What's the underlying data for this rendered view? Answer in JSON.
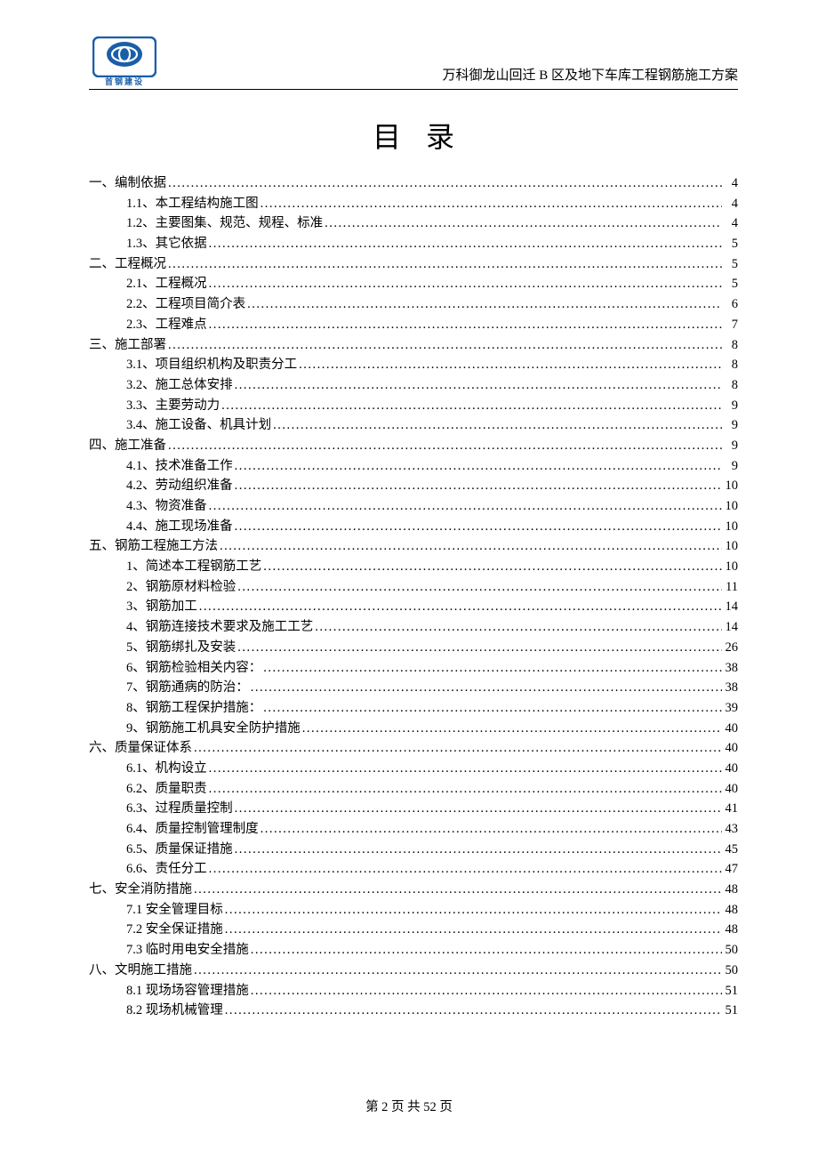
{
  "header": {
    "logo_caption": "首钢建设",
    "doc_title": "万科御龙山回迁 B 区及地下车库工程钢筋施工方案"
  },
  "toc_heading": "目录",
  "footer": {
    "text": "第 2 页 共 52 页"
  },
  "colors": {
    "logo_blue": "#1a5ea8",
    "text": "#000000",
    "background": "#ffffff"
  },
  "toc": [
    {
      "level": 1,
      "label": "一、编制依据",
      "page": "4"
    },
    {
      "level": 2,
      "label": "1.1、本工程结构施工图",
      "page": "4"
    },
    {
      "level": 2,
      "label": "1.2、主要图集、规范、规程、标准",
      "page": "4"
    },
    {
      "level": 2,
      "label": "1.3、其它依据",
      "page": "5"
    },
    {
      "level": 1,
      "label": "二、工程概况",
      "page": "5"
    },
    {
      "level": 2,
      "label": "2.1、工程概况",
      "page": "5"
    },
    {
      "level": 2,
      "label": "2.2、工程项目简介表",
      "page": "6"
    },
    {
      "level": 2,
      "label": "2.3、工程难点",
      "page": "7"
    },
    {
      "level": 1,
      "label": "三、施工部署",
      "page": "8"
    },
    {
      "level": 2,
      "label": "3.1、项目组织机构及职责分工",
      "page": "8"
    },
    {
      "level": 2,
      "label": "3.2、施工总体安排",
      "page": "8"
    },
    {
      "level": 2,
      "label": "3.3、主要劳动力",
      "page": "9"
    },
    {
      "level": 2,
      "label": "3.4、施工设备、机具计划",
      "page": "9"
    },
    {
      "level": 1,
      "label": "四、施工准备",
      "page": "9"
    },
    {
      "level": 2,
      "label": "4.1、技术准备工作",
      "page": "9"
    },
    {
      "level": 2,
      "label": "4.2、劳动组织准备",
      "page": "10"
    },
    {
      "level": 2,
      "label": "4.3、物资准备",
      "page": "10"
    },
    {
      "level": 2,
      "label": "4.4、施工现场准备",
      "page": "10"
    },
    {
      "level": 1,
      "label": "五、钢筋工程施工方法",
      "page": "10"
    },
    {
      "level": 2,
      "label": "1、简述本工程钢筋工艺",
      "page": "10"
    },
    {
      "level": 2,
      "label": "2、钢筋原材料检验",
      "page": "11"
    },
    {
      "level": 2,
      "label": "3、钢筋加工",
      "page": "14"
    },
    {
      "level": 2,
      "label": "4、钢筋连接技术要求及施工工艺",
      "page": "14"
    },
    {
      "level": 2,
      "label": "5、钢筋绑扎及安装",
      "page": "26"
    },
    {
      "level": 2,
      "label": "6、钢筋检验相关内容：",
      "page": "38"
    },
    {
      "level": 2,
      "label": "7、钢筋通病的防治：",
      "page": "38"
    },
    {
      "level": 2,
      "label": "8、钢筋工程保护措施：",
      "page": "39"
    },
    {
      "level": 2,
      "label": "9、钢筋施工机具安全防护措施",
      "page": "40"
    },
    {
      "level": 1,
      "label": "六、质量保证体系",
      "page": "40"
    },
    {
      "level": 2,
      "label": "6.1、机构设立",
      "page": "40"
    },
    {
      "level": 2,
      "label": "6.2、质量职责",
      "page": "40"
    },
    {
      "level": 2,
      "label": "6.3、过程质量控制",
      "page": "41"
    },
    {
      "level": 2,
      "label": "6.4、质量控制管理制度",
      "page": "43"
    },
    {
      "level": 2,
      "label": "6.5、质量保证措施",
      "page": "45"
    },
    {
      "level": 2,
      "label": "6.6、责任分工",
      "page": "47"
    },
    {
      "level": 1,
      "label": "七、安全消防措施",
      "page": "48"
    },
    {
      "level": 2,
      "label": "7.1 安全管理目标",
      "page": "48"
    },
    {
      "level": 2,
      "label": "7.2 安全保证措施",
      "page": "48"
    },
    {
      "level": 2,
      "label": "7.3 临时用电安全措施",
      "page": "50"
    },
    {
      "level": 1,
      "label": "八、文明施工措施",
      "page": "50"
    },
    {
      "level": 2,
      "label": "8.1 现场场容管理措施",
      "page": "51"
    },
    {
      "level": 2,
      "label": "8.2 现场机械管理",
      "page": "51"
    }
  ]
}
